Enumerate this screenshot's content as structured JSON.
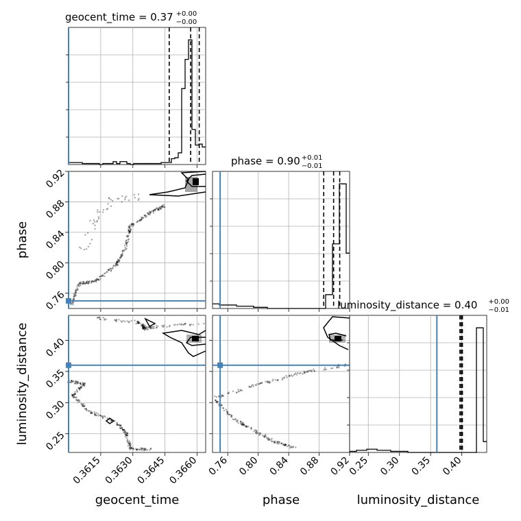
{
  "chart_data": {
    "type": "corner",
    "parameters": [
      "geocent_time",
      "phase",
      "luminosity_distance"
    ],
    "titles": [
      {
        "param": "geocent_time",
        "label": "geocent_time = 0.37",
        "plus": "+0.00",
        "minus": "−0.00"
      },
      {
        "param": "phase",
        "label": "phase = 0.90",
        "plus": "+0.01",
        "minus": "−0.01"
      },
      {
        "param": "luminosity_distance",
        "label": "luminosity_distance = 0.40",
        "plus": "+0.00",
        "minus": "−0.01"
      }
    ],
    "axis_labels": {
      "x": [
        "geocent_time",
        "phase",
        "luminosity_distance"
      ],
      "y": [
        "phase",
        "luminosity_distance"
      ]
    },
    "ranges": {
      "geocent_time": [
        0.36,
        0.3664
      ],
      "phase": [
        0.74,
        0.92
      ],
      "luminosity_distance": [
        0.22,
        0.44
      ]
    },
    "ticks": {
      "geocent_time": [
        "0.3615",
        "0.3630",
        "0.3645",
        "0.3660"
      ],
      "geocent_time_values": [
        0.3615,
        0.363,
        0.3645,
        0.366
      ],
      "phase": [
        "0.76",
        "0.80",
        "0.84",
        "0.88",
        "0.92"
      ],
      "phase_values": [
        0.76,
        0.8,
        0.84,
        0.88,
        0.92
      ],
      "luminosity_distance": [
        "0.25",
        "0.30",
        "0.35",
        "0.40"
      ],
      "luminosity_distance_values": [
        0.25,
        0.3,
        0.35,
        0.4
      ]
    },
    "injection": {
      "geocent_time": 0.36,
      "phase": 0.75,
      "luminosity_distance": 0.36
    },
    "color_injection": "#4682b4",
    "color_contour": "#000000",
    "quantiles": {
      "geocent_time": [
        0.3647,
        0.3657,
        0.3661
      ],
      "phase": [
        0.886,
        0.899,
        0.907
      ],
      "luminosity_distance": [
        0.397,
        0.399,
        0.401
      ]
    },
    "histograms": {
      "geocent_time": {
        "edges_range": [
          0.36,
          0.3664
        ],
        "counts": [
          2,
          2,
          2,
          2,
          1,
          1,
          1,
          1,
          1,
          0,
          1,
          1,
          1,
          3,
          1,
          3,
          3,
          1,
          0,
          1,
          1,
          1,
          1,
          1,
          1,
          1,
          1,
          2,
          2,
          2,
          6,
          7,
          12,
          78,
          108,
          128,
          36,
          20,
          21,
          18
        ]
      },
      "phase": {
        "edges_range": [
          0.74,
          0.92
        ],
        "counts": [
          4,
          4,
          3,
          3,
          3,
          3,
          3,
          2,
          2,
          2,
          2,
          2,
          1,
          1,
          1,
          1,
          0,
          0,
          0,
          0,
          0,
          0,
          0,
          0,
          0,
          0,
          0,
          0,
          0,
          0,
          0,
          0,
          0,
          12,
          12,
          56,
          56,
          108,
          108,
          48
        ]
      },
      "luminosity_distance": {
        "edges_range": [
          0.22,
          0.44
        ],
        "counts": [
          1,
          1,
          2,
          2,
          2,
          3,
          3,
          3,
          2,
          2,
          2,
          2,
          1,
          1,
          1,
          1,
          1,
          0,
          0,
          0,
          0,
          0,
          0,
          0,
          0,
          0,
          0,
          0,
          0,
          0,
          0,
          0,
          0,
          0,
          0,
          0,
          0,
          115,
          115,
          10
        ]
      }
    },
    "grid": true
  }
}
